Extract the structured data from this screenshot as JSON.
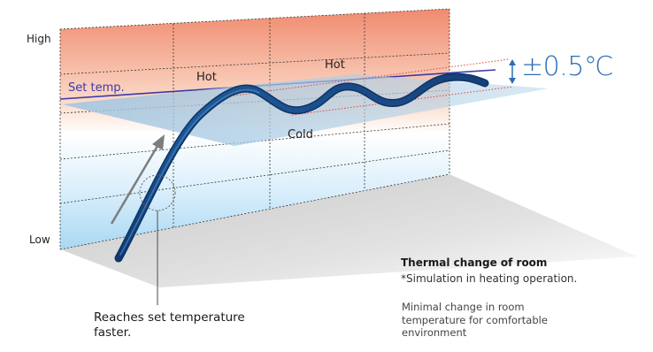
{
  "axis": {
    "high": "High",
    "low": "Low"
  },
  "labels": {
    "set_temp": "Set temp.",
    "hot_first": "Hot",
    "hot_second": "Hot",
    "cold": "Cold",
    "tolerance": "±0.5℃"
  },
  "callout": {
    "reaches": "Reaches set temperature faster."
  },
  "caption": {
    "title": "Thermal change of room",
    "note": "*Simulation in heating operation.",
    "description": "Minimal change in room temperature for comfortable environment"
  },
  "colors": {
    "hot": "#f08a6e",
    "cold": "#a9d8f2",
    "set_line": "#3a3aa8",
    "curve": "#1c4f8c",
    "tolerance": "#2a6fb5",
    "band": "#9ec4e0"
  }
}
